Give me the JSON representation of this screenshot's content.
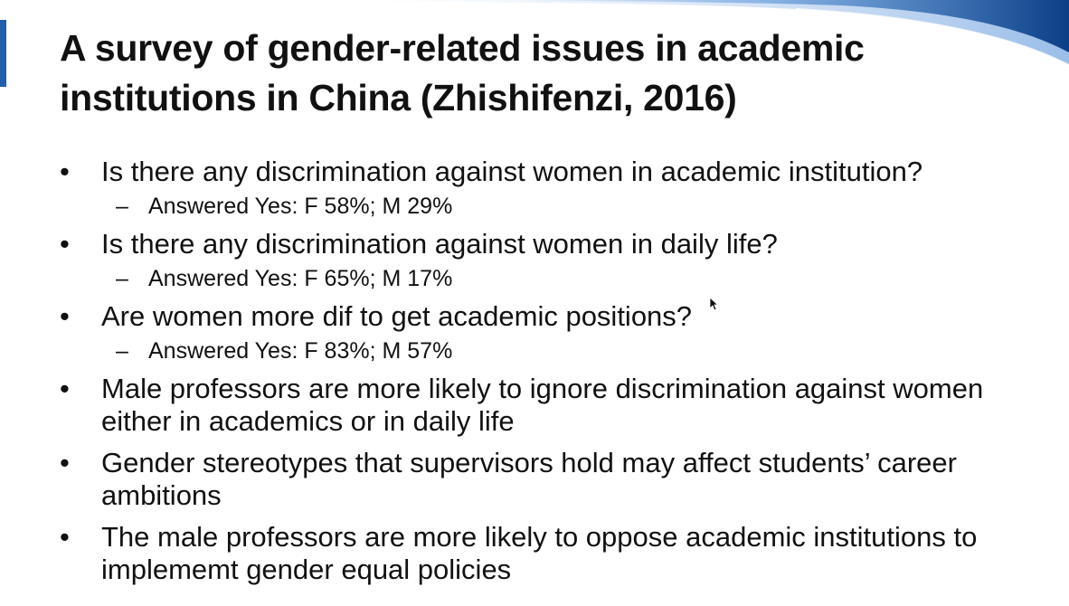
{
  "slide": {
    "title": "A survey of gender-related issues in academic institutions in China (Zhishifenzi, 2016)",
    "bullets": [
      {
        "text": "Is there any discrimination against women in academic institution?",
        "sub": "Answered Yes: F 58%; M 29%"
      },
      {
        "text": "Is there any discrimination against women in daily life?",
        "sub": "Answered Yes: F 65%; M 17%"
      },
      {
        "text": "Are women more dif to get academic positions?",
        "sub": "Answered Yes: F 83%; M 57%"
      },
      {
        "text": "Male professors are more likely to ignore discrimination against women either in academics or in daily life"
      },
      {
        "text": "Gender stereotypes that supervisors hold may affect students’ career ambitions"
      },
      {
        "text": "The male professors are more likely to oppose academic institutions to implememt gender equal policies"
      }
    ],
    "bullet_symbol": "•",
    "sub_symbol": "–"
  },
  "theme": {
    "accent": "#1f5fae",
    "accent_dark": "#0b3f86",
    "text": "#111111",
    "background": "#ffffff"
  },
  "icons": {
    "cursor": "mouse-pointer-icon"
  }
}
